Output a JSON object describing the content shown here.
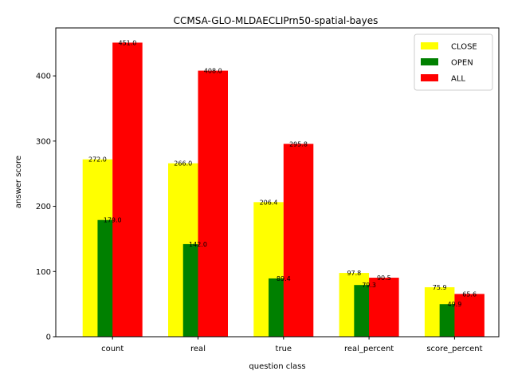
{
  "chart_data": {
    "type": "bar",
    "title": "CCMSA-GLO-MLDAECLIPrn50-spatial-bayes",
    "xlabel": "question class",
    "ylabel": "answer score",
    "categories": [
      "count",
      "real",
      "true",
      "real_percent",
      "score_percent"
    ],
    "series": [
      {
        "name": "CLOSE",
        "color": "#ffff00",
        "values": [
          272.0,
          266.0,
          206.4,
          97.8,
          75.9
        ]
      },
      {
        "name": "OPEN",
        "color": "#008000",
        "values": [
          179.0,
          142.0,
          89.4,
          79.3,
          49.9
        ]
      },
      {
        "name": "ALL",
        "color": "#ff0000",
        "values": [
          451.0,
          408.0,
          295.8,
          90.5,
          65.6
        ]
      }
    ],
    "ylim": [
      0,
      473.55
    ],
    "yticks": [
      0,
      100,
      200,
      300,
      400
    ],
    "legend": "top-right",
    "grid": false
  }
}
